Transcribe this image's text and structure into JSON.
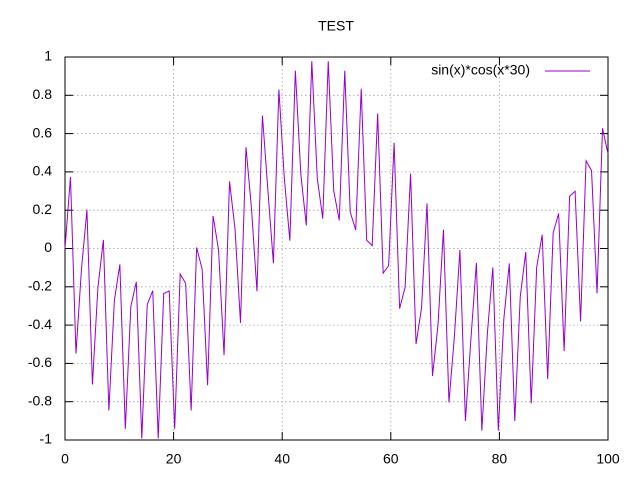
{
  "chart_data": {
    "type": "line",
    "title": "TEST",
    "x": [
      0,
      1.01,
      2.02,
      3.03,
      4.04,
      5.05,
      6.06,
      7.07,
      8.08,
      9.09,
      10.1,
      11.11,
      12.12,
      13.13,
      14.14,
      15.15,
      16.16,
      17.17,
      18.18,
      19.19,
      20.2,
      21.21,
      22.22,
      23.23,
      24.24,
      25.25,
      26.26,
      27.27,
      28.28,
      29.29,
      30.3,
      31.31,
      32.32,
      33.33,
      34.34,
      35.35,
      36.36,
      37.37,
      38.38,
      39.39,
      40.4,
      41.41,
      42.42,
      43.43,
      44.44,
      45.45,
      46.46,
      47.47,
      48.48,
      49.49,
      50.51,
      51.52,
      52.53,
      53.54,
      54.55,
      55.56,
      56.57,
      57.58,
      58.59,
      59.6,
      60.61,
      61.62,
      62.63,
      63.64,
      64.65,
      65.66,
      66.67,
      67.68,
      68.69,
      69.7,
      70.71,
      71.72,
      72.73,
      73.74,
      74.75,
      75.76,
      76.77,
      77.78,
      78.79,
      79.8,
      80.81,
      81.82,
      82.83,
      83.84,
      84.85,
      85.86,
      86.87,
      87.88,
      88.89,
      89.9,
      90.91,
      91.92,
      92.93,
      93.94,
      94.95,
      95.96,
      96.97,
      97.98,
      98.99,
      100
    ],
    "series": [
      {
        "name": "sin(x)*cos(x*30)",
        "color": "#9400d3",
        "values": [
          0,
          0.374,
          -0.548,
          -0.109,
          0.202,
          -0.71,
          -0.204,
          0.045,
          -0.846,
          -0.272,
          -0.083,
          -0.942,
          -0.304,
          -0.174,
          -0.992,
          -0.292,
          -0.22,
          -0.992,
          -0.235,
          -0.222,
          -0.942,
          -0.133,
          -0.182,
          -0.846,
          0.005,
          -0.107,
          -0.714,
          0.17,
          -0.008,
          -0.557,
          0.35,
          0.102,
          -0.388,
          0.529,
          0.21,
          -0.223,
          0.694,
          0.302,
          -0.077,
          0.83,
          0.364,
          0.041,
          0.929,
          0.388,
          0.12,
          0.978,
          0.367,
          0.156,
          0.978,
          0.301,
          0.147,
          0.928,
          0.19,
          0.097,
          0.834,
          0.043,
          0.015,
          0.705,
          -0.129,
          -0.09,
          0.552,
          -0.314,
          -0.203,
          0.391,
          -0.499,
          -0.311,
          0.235,
          -0.666,
          -0.399,
          0.098,
          -0.804,
          -0.456,
          -0.008,
          -0.901,
          -0.474,
          -0.075,
          -0.951,
          -0.445,
          -0.099,
          -0.95,
          -0.37,
          -0.078,
          -0.901,
          -0.252,
          -0.018,
          -0.809,
          -0.097,
          0.072,
          -0.682,
          0.082,
          0.183,
          -0.535,
          0.272,
          0.299,
          -0.381,
          0.458,
          0.407,
          -0.234,
          0.628,
          0.494
        ]
      }
    ],
    "xlim": [
      0,
      100
    ],
    "ylim": [
      -1,
      1
    ],
    "xticks": [
      0,
      20,
      40,
      60,
      80,
      100
    ],
    "yticks": [
      -1,
      -0.8,
      -0.6,
      -0.4,
      -0.2,
      0,
      0.2,
      0.4,
      0.6,
      0.8,
      1
    ],
    "grid": true,
    "legend": "top right"
  }
}
